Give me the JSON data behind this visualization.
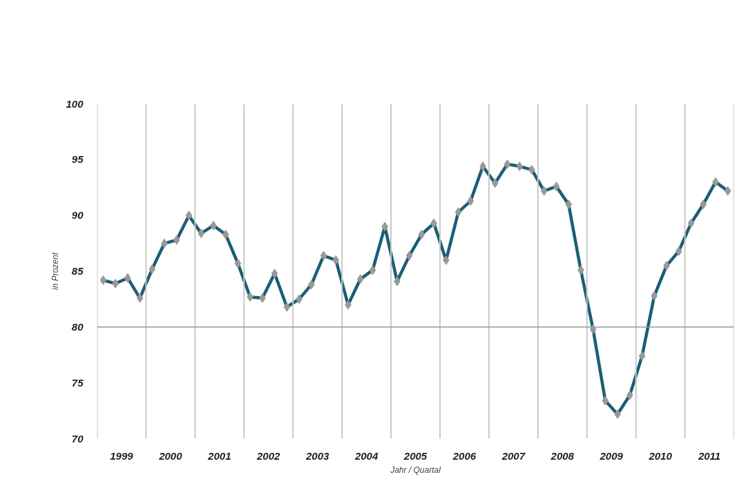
{
  "chart_data": {
    "type": "line",
    "xlabel": "Jahr / Quartal",
    "ylabel": "in Prozent",
    "x": [
      1999.125,
      1999.375,
      1999.625,
      1999.875,
      2000.125,
      2000.375,
      2000.625,
      2000.875,
      2001.125,
      2001.375,
      2001.625,
      2001.875,
      2002.125,
      2002.375,
      2002.625,
      2002.875,
      2003.125,
      2003.375,
      2003.625,
      2003.875,
      2004.125,
      2004.375,
      2004.625,
      2004.875,
      2005.125,
      2005.375,
      2005.625,
      2005.875,
      2006.125,
      2006.375,
      2006.625,
      2006.875,
      2007.125,
      2007.375,
      2007.625,
      2007.875,
      2008.125,
      2008.375,
      2008.625,
      2008.875,
      2009.125,
      2009.375,
      2009.625,
      2009.875,
      2010.125,
      2010.375,
      2010.625,
      2010.875,
      2011.125,
      2011.375,
      2011.625,
      2011.875
    ],
    "series": [
      {
        "color": "#1b5e75",
        "values": [
          84.2,
          83.9,
          84.4,
          82.6,
          85.2,
          87.5,
          87.8,
          90.0,
          88.4,
          89.1,
          88.3,
          85.7,
          82.7,
          82.6,
          84.8,
          81.8,
          82.5,
          83.8,
          86.4,
          86.0,
          82.0,
          84.3,
          85.1,
          89.0,
          84.1,
          86.4,
          88.3,
          89.3,
          86.0,
          90.3,
          91.3,
          94.4,
          92.9,
          94.6,
          94.4,
          94.1,
          92.2,
          92.6,
          91.0,
          85.1,
          79.8,
          73.4,
          72.2,
          73.9,
          77.4,
          82.8,
          85.5,
          86.8,
          89.3,
          91.0,
          93.0,
          92.2
        ]
      }
    ],
    "marker": "diamond",
    "line_style": "solid",
    "grid": "x",
    "xlim": [
      1999,
      2012
    ],
    "ylim": [
      70,
      100
    ],
    "xticks": [
      {
        "value": 1999,
        "label": null
      },
      {
        "value": 1999.5,
        "label": "1999"
      },
      {
        "value": 2000,
        "label": null
      },
      {
        "value": 2000.5,
        "label": "2000"
      },
      {
        "value": 2001,
        "label": null
      },
      {
        "value": 2001.5,
        "label": "2001"
      },
      {
        "value": 2002,
        "label": null
      },
      {
        "value": 2002.5,
        "label": "2002"
      },
      {
        "value": 2003,
        "label": null
      },
      {
        "value": 2003.5,
        "label": "2003"
      },
      {
        "value": 2004,
        "label": null
      },
      {
        "value": 2004.5,
        "label": "2004"
      },
      {
        "value": 2005,
        "label": null
      },
      {
        "value": 2005.5,
        "label": "2005"
      },
      {
        "value": 2006,
        "label": null
      },
      {
        "value": 2006.5,
        "label": "2006"
      },
      {
        "value": 2007,
        "label": null
      },
      {
        "value": 2007.5,
        "label": "2007"
      },
      {
        "value": 2008,
        "label": null
      },
      {
        "value": 2008.5,
        "label": "2008"
      },
      {
        "value": 2009,
        "label": null
      },
      {
        "value": 2009.5,
        "label": "2009"
      },
      {
        "value": 2010,
        "label": null
      },
      {
        "value": 2010.5,
        "label": "2010"
      },
      {
        "value": 2011,
        "label": null
      },
      {
        "value": 2011.5,
        "label": "2011"
      },
      {
        "value": 2012,
        "label": null
      }
    ],
    "yticks": [
      70,
      75,
      80,
      85,
      90,
      95,
      100
    ],
    "ref_lines": [
      {
        "axis": "y",
        "value": 80,
        "label": null,
        "color": "#999999"
      }
    ]
  }
}
